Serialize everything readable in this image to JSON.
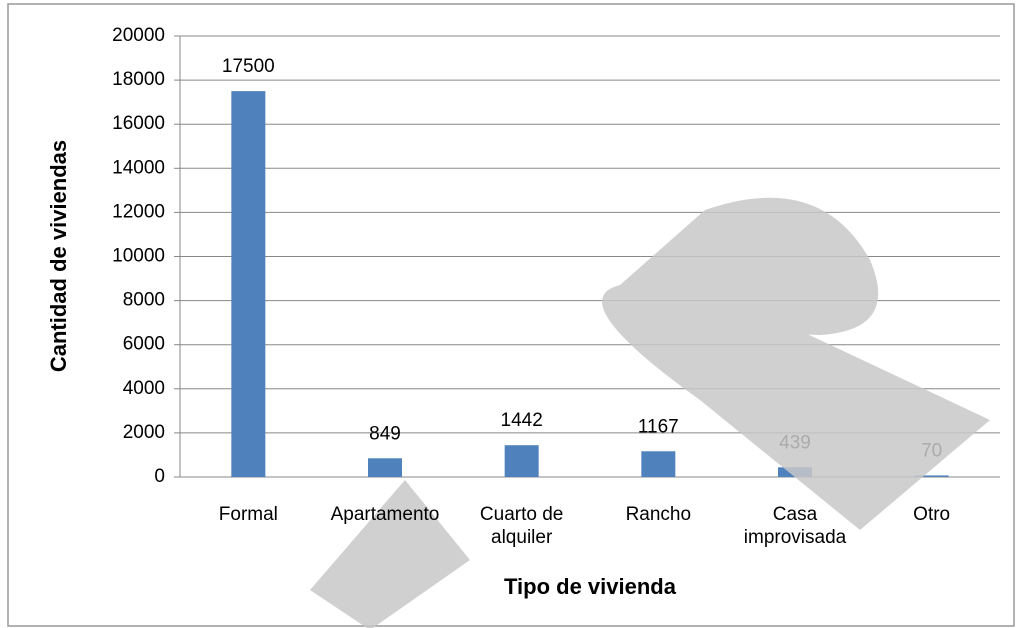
{
  "chart_data": {
    "type": "bar",
    "x_label": "Tipo de vivienda",
    "y_label": "Cantidad de viviendas",
    "categories": [
      "Formal",
      "Apartamento",
      "Cuarto de alquiler",
      "Rancho",
      "Casa improvisada",
      "Otro"
    ],
    "values": [
      17500,
      849,
      1442,
      1167,
      439,
      70
    ],
    "color": "#4f81bd",
    "ylim": [
      0,
      20000
    ],
    "yticks": [
      0,
      2000,
      4000,
      6000,
      8000,
      10000,
      12000,
      14000,
      16000,
      18000,
      20000
    ],
    "grid": true
  }
}
